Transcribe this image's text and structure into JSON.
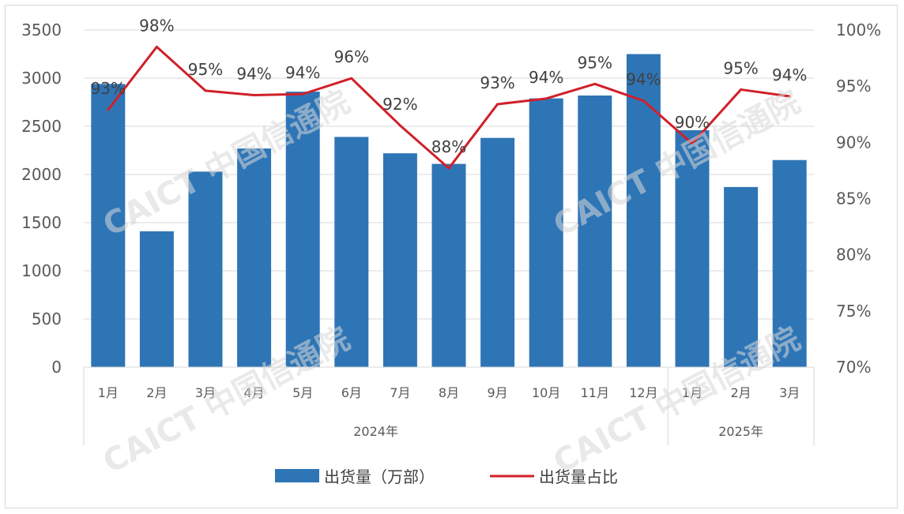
{
  "chart_data": {
    "type": "bar+line",
    "year_groups": [
      {
        "label": "2024年",
        "count": 12
      },
      {
        "label": "2025年",
        "count": 3
      }
    ],
    "categories": [
      "1月",
      "2月",
      "3月",
      "4月",
      "5月",
      "6月",
      "7月",
      "8月",
      "9月",
      "10月",
      "11月",
      "12月",
      "1月",
      "2月",
      "3月"
    ],
    "series": [
      {
        "name": "出货量（万部）",
        "type": "bar",
        "axis": "left",
        "color": "#2e75b6",
        "values": [
          2940,
          1410,
          2030,
          2270,
          2860,
          2390,
          2220,
          2110,
          2380,
          2790,
          2820,
          3250,
          2460,
          1870,
          2150
        ]
      },
      {
        "name": "出货量占比",
        "type": "line",
        "axis": "right",
        "color": "#d0202a",
        "values": [
          0.929,
          0.985,
          0.946,
          0.942,
          0.943,
          0.957,
          0.915,
          0.877,
          0.934,
          0.939,
          0.952,
          0.937,
          0.899,
          0.947,
          0.941
        ],
        "labels": [
          "93%",
          "98%",
          "95%",
          "94%",
          "94%",
          "96%",
          "92%",
          "88%",
          "93%",
          "94%",
          "95%",
          "94%",
          "90%",
          "95%",
          "94%"
        ]
      }
    ],
    "y_left": {
      "min": 0,
      "max": 3500,
      "ticks": [
        "0",
        "500",
        "1000",
        "1500",
        "2000",
        "2500",
        "3000",
        "3500"
      ]
    },
    "y_right": {
      "min": 0.7,
      "max": 1.0,
      "ticks": [
        "70%",
        "75%",
        "80%",
        "85%",
        "90%",
        "95%",
        "100%"
      ]
    },
    "grid": true,
    "legend_position": "bottom",
    "watermark": "CAICT 中国信通院"
  }
}
